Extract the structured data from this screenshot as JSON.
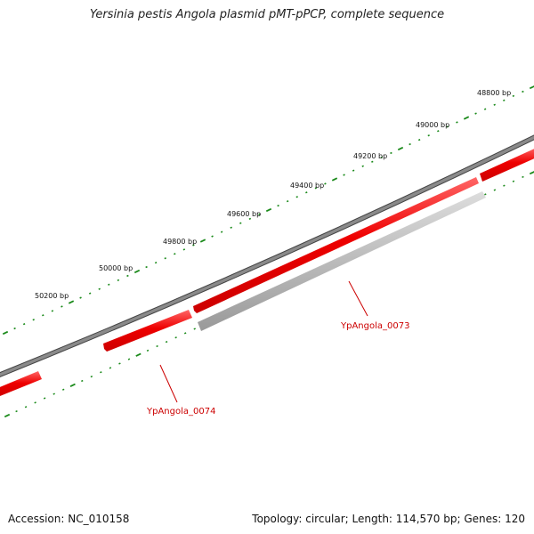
{
  "title": "Yersinia pestis Angola plasmid pMT-pPCP, complete sequence",
  "colors": {
    "gene_forward": "#ee0000",
    "gene_reverse_gray": "#bbbbbb",
    "backbone": "#777777",
    "ticks": "#1a8a1a",
    "label": "#cc0000"
  },
  "scale_labels": [
    {
      "id": "50200",
      "text": "50200 bp"
    },
    {
      "id": "50000",
      "text": "50000 bp"
    },
    {
      "id": "49800",
      "text": "49800 bp"
    },
    {
      "id": "49600",
      "text": "49600 bp"
    },
    {
      "id": "49400",
      "text": "49400 bp"
    },
    {
      "id": "49200",
      "text": "49200 bp"
    },
    {
      "id": "49000",
      "text": "49000 bp"
    },
    {
      "id": "48800",
      "text": "48800 bp"
    }
  ],
  "genes": [
    {
      "id": "YpAngola_0074",
      "label": "YpAngola_0074"
    },
    {
      "id": "YpAngola_0073",
      "label": "YpAngola_0073"
    }
  ],
  "footer": {
    "accession": "Accession: NC_010158",
    "summary": "Topology: circular; Length: 114,570 bp; Genes: 120"
  }
}
